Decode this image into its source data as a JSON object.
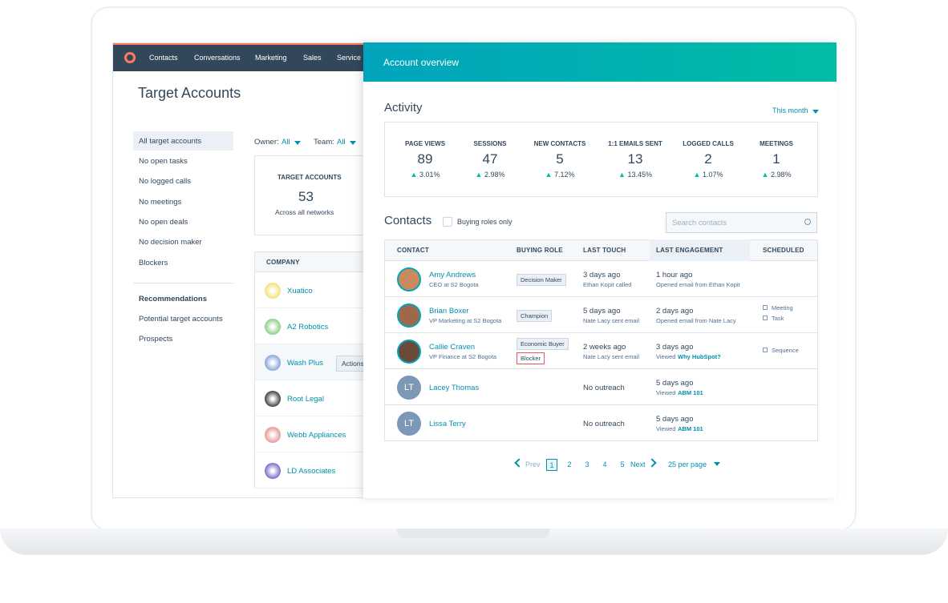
{
  "nav": {
    "items": [
      "Contacts",
      "Conversations",
      "Marketing",
      "Sales",
      "Service"
    ]
  },
  "page_title": "Target Accounts",
  "sidebar": {
    "items": [
      "All target accounts",
      "No open tasks",
      "No logged calls",
      "No meetings",
      "No open deals",
      "No decision maker",
      "Blockers"
    ],
    "recommendations_heading": "Recommendations",
    "recommendations": [
      "Potential target accounts",
      "Prospects"
    ]
  },
  "filters": {
    "owner_label": "Owner:",
    "owner_value": "All",
    "team_label": "Team:",
    "team_value": "All"
  },
  "summary_card": {
    "label": "TARGET ACCOUNTS",
    "value": 53,
    "subtitle": "Across all networks"
  },
  "company_table": {
    "header": "COMPANY",
    "rows": [
      "Xuatico",
      "A2 Robotics",
      "Wash Plus",
      "Root Legal",
      "Webb Appliances",
      "LD Associates"
    ],
    "action_button": "Actions"
  },
  "panel": {
    "title": "Account overview",
    "activity_heading": "Activity",
    "period": "This month",
    "stats": [
      {
        "label": "PAGE VIEWS",
        "value": 89,
        "change": "3.01%"
      },
      {
        "label": "SESSIONS",
        "value": 47,
        "change": "2.98%"
      },
      {
        "label": "NEW CONTACTS",
        "value": 5,
        "change": "7.12%"
      },
      {
        "label": "1:1 EMAILS SENT",
        "value": 13,
        "change": "13.45%"
      },
      {
        "label": "LOGGED CALLS",
        "value": 2,
        "change": "1.07%"
      },
      {
        "label": "MEETINGS",
        "value": 1,
        "change": "2.98%"
      }
    ],
    "contacts_heading": "Contacts",
    "filter_checkbox": "Buying roles only",
    "search_placeholder": "Search contacts",
    "columns": [
      "CONTACT",
      "BUYING ROLE",
      "LAST TOUCH",
      "LAST ENGAGEMENT",
      "SCHEDULED"
    ],
    "rows": [
      {
        "name": "Amy Andrews",
        "subtitle": "CEO at S2 Bogota",
        "roles": [
          "Decision Maker"
        ],
        "touch": "3 days ago",
        "touch_detail": "Ethan Kopit called",
        "engagement": "1 hour ago",
        "engagement_detail": "Opened email from Ethan Kopit",
        "scheduled": []
      },
      {
        "name": "Brian Boxer",
        "subtitle": "VP Marketing at S2 Bogota",
        "roles": [
          "Champion"
        ],
        "touch": "5 days ago",
        "touch_detail": "Nate Lacy sent email",
        "engagement": "2 days ago",
        "engagement_detail": "Opened email from Nate Lacy",
        "scheduled": [
          "Meeting",
          "Task"
        ]
      },
      {
        "name": "Callie Craven",
        "subtitle": "VP Finance at S2 Bogota",
        "roles": [
          "Economic Buyer",
          "Blocker"
        ],
        "touch": "2 weeks ago",
        "touch_detail": "Nate Lacy sent email",
        "engagement": "3 days ago",
        "engagement_detail": "Viewed",
        "engagement_link": "Why HubSpot?",
        "scheduled": [
          "Sequence"
        ]
      },
      {
        "name": "Lacey Thomas",
        "initials": "LT",
        "touch": "No outreach",
        "engagement": "5 days ago",
        "engagement_detail": "Viewed",
        "engagement_link": "ABM 101"
      },
      {
        "name": "Lissa Terry",
        "initials": "LT",
        "touch": "No outreach",
        "engagement": "5 days ago",
        "engagement_detail": "Viewed",
        "engagement_link": "ABM 101"
      }
    ],
    "pagination": {
      "prev": "Prev",
      "pages": [
        1,
        2,
        3,
        4,
        5
      ],
      "next": "Next",
      "per_page": "25 per page"
    }
  }
}
